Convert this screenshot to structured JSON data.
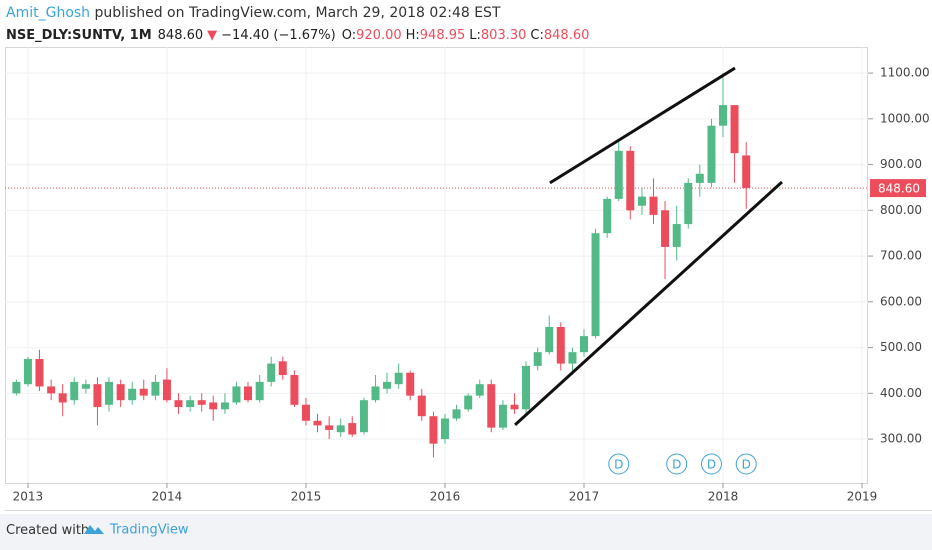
{
  "chart_data": {
    "type": "candlestick",
    "author": "Amit_Ghosh",
    "published": " published on TradingView.com, March 29, 2018 02:48 EST",
    "symbol": "NSE_DLY:SUNTV, 1M",
    "last_text": "848.60",
    "change_symbol": "▼",
    "change_text": "−14.40 (−1.67%)",
    "ohlc_header": [
      {
        "label": "O:",
        "value": "920.00"
      },
      {
        "label": "H:",
        "value": "948.95"
      },
      {
        "label": "L:",
        "value": "803.30"
      },
      {
        "label": "C:",
        "value": "848.60"
      }
    ],
    "footer_text": "Created with",
    "footer_brand": "TradingView",
    "up_color": "#53b987",
    "down_color": "#eb4d5c",
    "x": [
      2012.917,
      2013.0,
      2013.083,
      2013.167,
      2013.25,
      2013.333,
      2013.417,
      2013.5,
      2013.583,
      2013.667,
      2013.75,
      2013.833,
      2013.917,
      2014.0,
      2014.083,
      2014.167,
      2014.25,
      2014.333,
      2014.417,
      2014.5,
      2014.583,
      2014.667,
      2014.75,
      2014.833,
      2014.917,
      2015.0,
      2015.083,
      2015.167,
      2015.25,
      2015.333,
      2015.417,
      2015.5,
      2015.583,
      2015.667,
      2015.75,
      2015.833,
      2015.917,
      2016.0,
      2016.083,
      2016.167,
      2016.25,
      2016.333,
      2016.417,
      2016.5,
      2016.583,
      2016.667,
      2016.75,
      2016.833,
      2016.917,
      2017.0,
      2017.083,
      2017.167,
      2017.25,
      2017.333,
      2017.417,
      2017.5,
      2017.583,
      2017.667,
      2017.75,
      2017.833,
      2017.917,
      2018.0,
      2018.083,
      2018.167
    ],
    "open": [
      400,
      420,
      475,
      415,
      400,
      385,
      410,
      420,
      375,
      420,
      385,
      410,
      395,
      430,
      385,
      370,
      385,
      380,
      365,
      380,
      415,
      385,
      425,
      470,
      440,
      375,
      340,
      330,
      315,
      335,
      315,
      385,
      410,
      420,
      445,
      395,
      350,
      300,
      345,
      365,
      395,
      420,
      325,
      375,
      365,
      460,
      490,
      545,
      465,
      490,
      525,
      750,
      825,
      930,
      810,
      830,
      800,
      720,
      770,
      860,
      860,
      985,
      1030,
      920
    ],
    "high": [
      430,
      480,
      495,
      430,
      420,
      435,
      430,
      435,
      435,
      430,
      425,
      430,
      440,
      455,
      400,
      395,
      400,
      395,
      400,
      425,
      425,
      440,
      480,
      480,
      450,
      390,
      355,
      350,
      345,
      350,
      390,
      440,
      445,
      465,
      450,
      410,
      360,
      355,
      375,
      400,
      430,
      430,
      385,
      400,
      470,
      500,
      570,
      555,
      500,
      540,
      760,
      830,
      950,
      940,
      850,
      870,
      820,
      810,
      870,
      900,
      1000,
      1100,
      1030,
      948.95
    ],
    "low": [
      395,
      415,
      405,
      385,
      350,
      375,
      400,
      330,
      360,
      370,
      375,
      385,
      385,
      380,
      355,
      360,
      360,
      340,
      355,
      375,
      380,
      380,
      415,
      430,
      370,
      330,
      315,
      300,
      305,
      305,
      310,
      380,
      400,
      410,
      385,
      340,
      260,
      290,
      340,
      360,
      390,
      315,
      320,
      355,
      355,
      450,
      485,
      450,
      440,
      480,
      520,
      740,
      820,
      780,
      790,
      770,
      650,
      690,
      760,
      830,
      850,
      960,
      860,
      803.3
    ],
    "close": [
      425,
      475,
      415,
      400,
      380,
      425,
      420,
      370,
      425,
      385,
      410,
      395,
      425,
      385,
      370,
      385,
      375,
      365,
      380,
      415,
      385,
      425,
      465,
      440,
      375,
      340,
      330,
      320,
      330,
      310,
      385,
      415,
      425,
      445,
      395,
      350,
      290,
      345,
      365,
      395,
      420,
      325,
      375,
      365,
      460,
      490,
      545,
      465,
      490,
      525,
      750,
      825,
      930,
      800,
      830,
      790,
      720,
      770,
      860,
      880,
      985,
      1030,
      925,
      848.6
    ],
    "last_price": {
      "value": 848.6,
      "label": "848.60"
    },
    "trendlines": [
      {
        "x": [
          2016.755,
          2018.086
        ],
        "y": [
          860,
          1111
        ]
      },
      {
        "x": [
          2016.504,
          2018.424
        ],
        "y": [
          331,
          862
        ]
      }
    ],
    "events": [
      {
        "x": 2017.25,
        "label": "D"
      },
      {
        "x": 2017.667,
        "label": "D"
      },
      {
        "x": 2017.917,
        "label": "D"
      },
      {
        "x": 2018.167,
        "label": "D"
      }
    ],
    "xlim": [
      2012.835,
      2019.043
    ],
    "xticks": [
      2013,
      2014,
      2015,
      2016,
      2017,
      2018,
      2019
    ],
    "ylim": [
      204,
      1157
    ],
    "yticks": [
      {
        "value": 300,
        "label": "300.00"
      },
      {
        "value": 400,
        "label": "400.00"
      },
      {
        "value": 500,
        "label": "500.00"
      },
      {
        "value": 600,
        "label": "600.00"
      },
      {
        "value": 700,
        "label": "700.00"
      },
      {
        "value": 800,
        "label": "800.00"
      },
      {
        "value": 900,
        "label": "900.00"
      },
      {
        "value": 1000,
        "label": "1000.00"
      },
      {
        "value": 1100,
        "label": "1100.00"
      }
    ],
    "grid": true
  }
}
